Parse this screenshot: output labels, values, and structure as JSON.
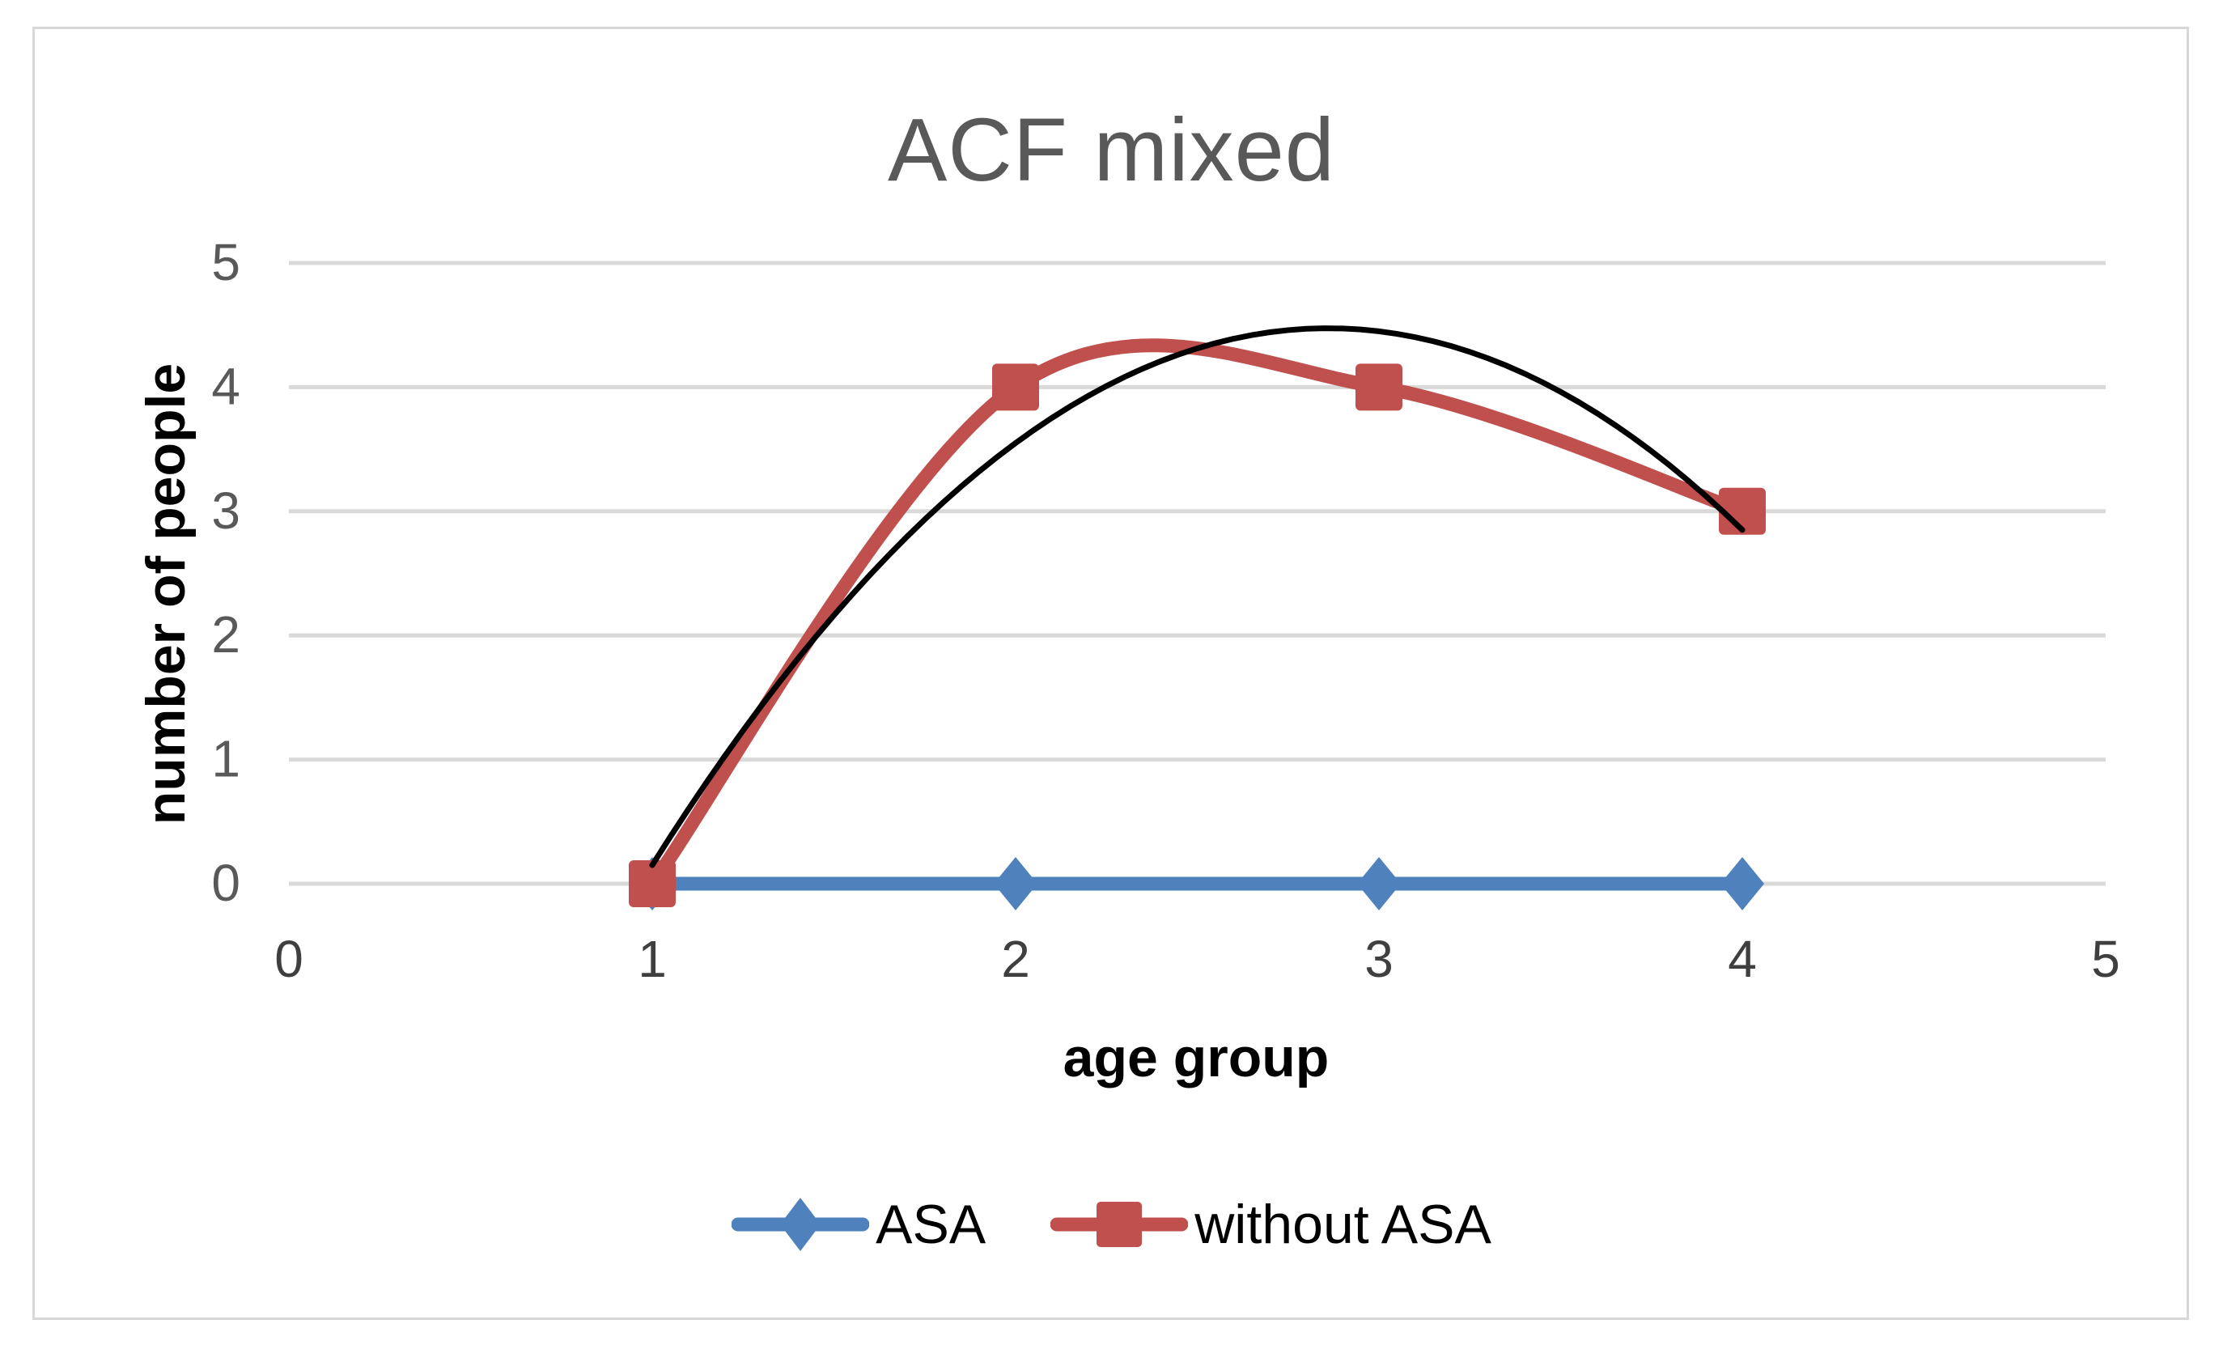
{
  "chart_data": {
    "type": "line",
    "title": "ACF mixed",
    "xlabel": "age group",
    "ylabel": "number of people",
    "xlim": [
      0,
      5
    ],
    "ylim": [
      0,
      5
    ],
    "xticks": [
      "0",
      "1",
      "2",
      "3",
      "4",
      "5"
    ],
    "yticks": [
      "0",
      "1",
      "2",
      "3",
      "4",
      "5"
    ],
    "grid": "horizontal-only",
    "legend_position": "bottom-center",
    "series": [
      {
        "name": "ASA",
        "color": "#4F81BD",
        "marker": "diamond",
        "smooth": false,
        "x": [
          1,
          2,
          3,
          4
        ],
        "y": [
          0,
          0,
          0,
          0
        ]
      },
      {
        "name": "without ASA",
        "color": "#C0504D",
        "marker": "square",
        "smooth": true,
        "x": [
          1,
          2,
          3,
          4
        ],
        "y": [
          0,
          4,
          4,
          3
        ]
      }
    ],
    "trendline": {
      "fit_of_series": "without ASA",
      "type": "polynomial",
      "order": 2,
      "a": -1.25,
      "b": 7.15,
      "c": -5.75,
      "color": "#000000",
      "x_start": 1,
      "x_end": 4
    }
  },
  "colors": {
    "background": "#FFFFFF",
    "frame_border": "#D7D7D7",
    "gridline": "#D9D9D9",
    "title_text": "#595959",
    "y_tick_text": "#595959",
    "x_tick_text": "#3F3F3F",
    "axis_title_text": "#000000"
  }
}
